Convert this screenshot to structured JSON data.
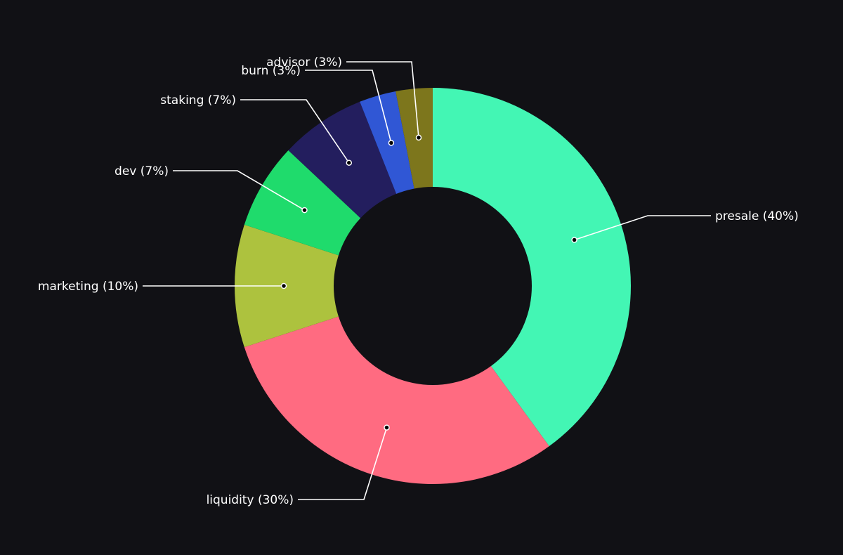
{
  "chart_data": {
    "type": "pie",
    "variant": "donut",
    "title": "",
    "legend": "none",
    "background_color": "#111115",
    "hole_color": "#111115",
    "slices": [
      {
        "name": "presale",
        "value": 40,
        "label": "presale (40%)",
        "color": "#43f6b4"
      },
      {
        "name": "liquidity",
        "value": 30,
        "label": "liquidity (30%)",
        "color": "#ff6b81"
      },
      {
        "name": "marketing",
        "value": 10,
        "label": "marketing (10%)",
        "color": "#adc23e"
      },
      {
        "name": "dev",
        "value": 7,
        "label": "dev (7%)",
        "color": "#1fdb6c"
      },
      {
        "name": "staking",
        "value": 7,
        "label": "staking (7%)",
        "color": "#231e5e"
      },
      {
        "name": "burn",
        "value": 3,
        "label": "burn (3%)",
        "color": "#3057d5"
      },
      {
        "name": "advisor",
        "value": 3,
        "label": "advisor (3%)",
        "color": "#7d761c"
      }
    ]
  }
}
